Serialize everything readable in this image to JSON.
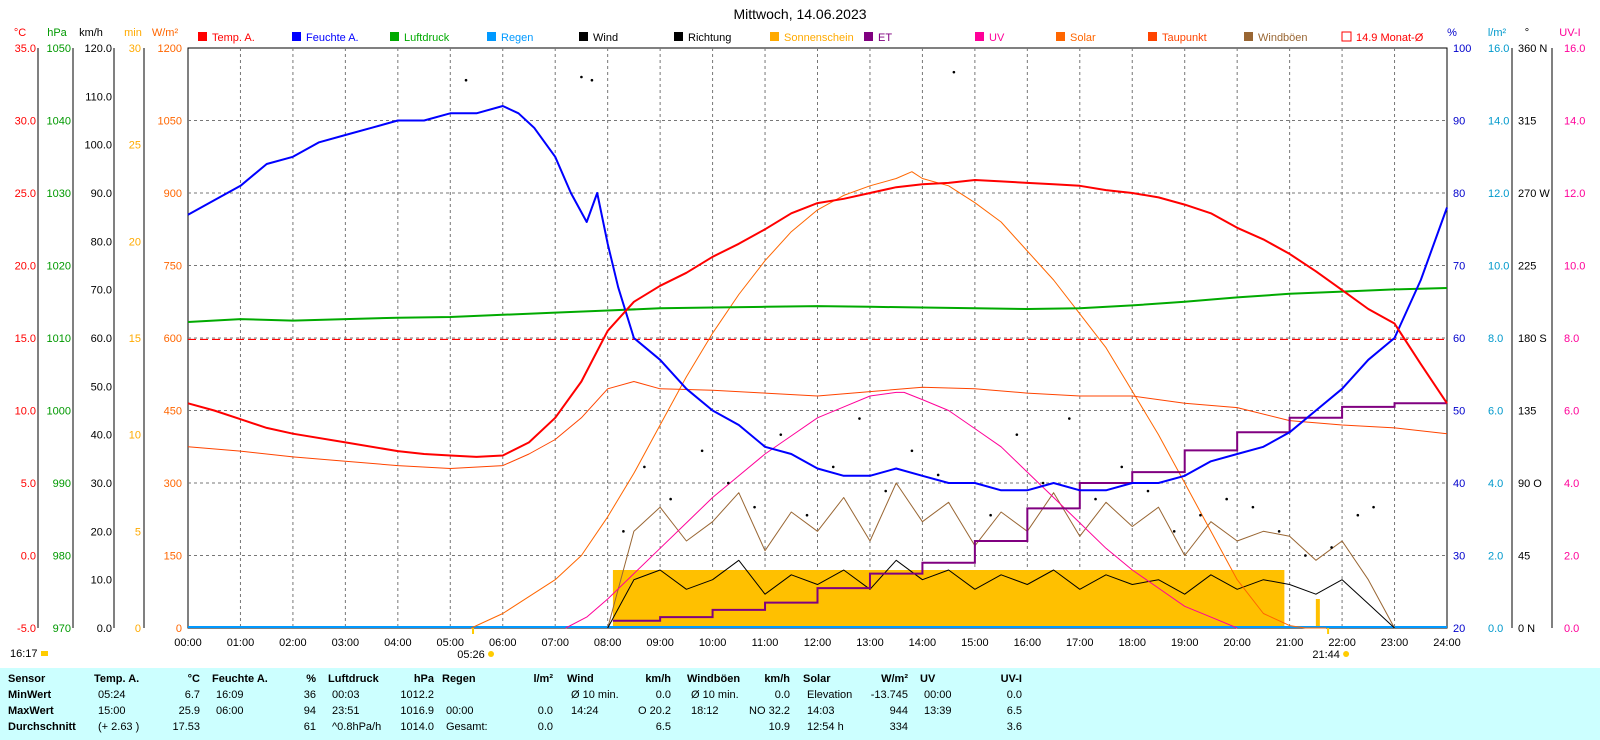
{
  "chart_data": {
    "type": "line",
    "title": "Mittwoch, 14.06.2023",
    "x_axis": {
      "range_hours": [
        0,
        24
      ],
      "tick_labels": [
        "00:00",
        "01:00",
        "02:00",
        "03:00",
        "04:00",
        "05:00",
        "06:00",
        "07:00",
        "08:00",
        "09:00",
        "10:00",
        "11:00",
        "12:00",
        "13:00",
        "14:00",
        "15:00",
        "16:00",
        "17:00",
        "18:00",
        "19:00",
        "20:00",
        "21:00",
        "22:00",
        "23:00",
        "24:00"
      ],
      "sunrise": "05:26",
      "sunset": "21:44",
      "current_time": "16:17"
    },
    "axes": [
      {
        "id": "temp",
        "unit": "°C",
        "color": "#ff0000",
        "min": -5,
        "max": 35,
        "ticks": [
          "-5.0",
          "0.0",
          "5.0",
          "10.0",
          "15.0",
          "20.0",
          "25.0",
          "30.0",
          "35.0"
        ]
      },
      {
        "id": "pressure",
        "unit": "hPa",
        "color": "#009900",
        "min": 970,
        "max": 1050,
        "ticks": [
          "970",
          "980",
          "990",
          "1000",
          "1010",
          "1020",
          "1030",
          "1040",
          "1050"
        ]
      },
      {
        "id": "wind",
        "unit": "km/h",
        "color": "#000000",
        "min": 0,
        "max": 120,
        "ticks": [
          "0.0",
          "10.0",
          "20.0",
          "30.0",
          "40.0",
          "50.0",
          "60.0",
          "70.0",
          "80.0",
          "90.0",
          "100.0",
          "110.0",
          "120.0"
        ]
      },
      {
        "id": "sunmin",
        "unit": "min",
        "color": "#ffaa00",
        "min": 0,
        "max": 30,
        "ticks": [
          "0",
          "5",
          "10",
          "15",
          "20",
          "25",
          "30"
        ]
      },
      {
        "id": "solar",
        "unit": "W/m²",
        "color": "#ff6600",
        "min": 0,
        "max": 1200,
        "ticks": [
          "0",
          "150",
          "300",
          "450",
          "600",
          "750",
          "900",
          "1050",
          "1200"
        ]
      },
      {
        "id": "humidity",
        "unit": "%",
        "color": "#0000cc",
        "min": 20,
        "max": 100,
        "ticks": [
          "20",
          "30",
          "40",
          "50",
          "60",
          "70",
          "80",
          "90",
          "100"
        ]
      },
      {
        "id": "rain",
        "unit": "l/m²",
        "color": "#0099cc",
        "min": 0,
        "max": 16,
        "ticks": [
          "0.0",
          "2.0",
          "4.0",
          "6.0",
          "8.0",
          "10.0",
          "12.0",
          "14.0",
          "16.0"
        ]
      },
      {
        "id": "direction",
        "unit": "°",
        "color": "#000000",
        "min": 0,
        "max": 360,
        "ticks": [
          "0 N",
          "45",
          "90 O",
          "135",
          "180 S",
          "225",
          "270 W",
          "315",
          "360 N"
        ]
      },
      {
        "id": "uv",
        "unit": "UV-I",
        "color": "#ff0099",
        "min": 0,
        "max": 16,
        "ticks": [
          "0.0",
          "2.0",
          "4.0",
          "6.0",
          "8.0",
          "10.0",
          "12.0",
          "14.0",
          "16.0"
        ]
      }
    ],
    "legend": [
      {
        "label": "Temp. A.",
        "color": "#ff0000"
      },
      {
        "label": "Feuchte A.",
        "color": "#0000ff"
      },
      {
        "label": "Luftdruck",
        "color": "#00aa00"
      },
      {
        "label": "Regen",
        "color": "#0099ff"
      },
      {
        "label": "Wind",
        "color": "#000000"
      },
      {
        "label": "Richtung",
        "color": "#000000"
      },
      {
        "label": "Sonnenschein",
        "color": "#ffaa00"
      },
      {
        "label": "ET",
        "color": "#800080"
      },
      {
        "label": "UV",
        "color": "#ff0099"
      },
      {
        "label": "Solar",
        "color": "#ff6600"
      },
      {
        "label": "Taupunkt",
        "color": "#ff4400"
      },
      {
        "label": "Windböen",
        "color": "#996633"
      },
      {
        "label": "14.9 Monat-Ø",
        "color": "#ff0000",
        "outline": true
      }
    ],
    "monthly_avg_temp": 14.9,
    "series": [
      {
        "name": "Temp. A.",
        "axis": "temp",
        "color": "#ff0000",
        "x": [
          0,
          0.5,
          1,
          1.5,
          2,
          3,
          4,
          4.5,
          5,
          5.5,
          6,
          6.5,
          7,
          7.5,
          8,
          8.5,
          9,
          9.5,
          10,
          10.5,
          11,
          11.5,
          12,
          12.5,
          13,
          13.5,
          14,
          14.5,
          15,
          15.5,
          16,
          16.5,
          17,
          17.5,
          18,
          18.5,
          19,
          19.5,
          20,
          20.5,
          21,
          21.5,
          22,
          22.5,
          23,
          23.5,
          24
        ],
        "y": [
          10.5,
          10.0,
          9.4,
          8.8,
          8.4,
          7.8,
          7.2,
          7.0,
          6.9,
          6.8,
          6.9,
          7.8,
          9.5,
          12.0,
          15.5,
          17.5,
          18.6,
          19.5,
          20.6,
          21.5,
          22.5,
          23.6,
          24.3,
          24.6,
          25.0,
          25.4,
          25.6,
          25.7,
          25.9,
          25.8,
          25.7,
          25.6,
          25.5,
          25.2,
          25.0,
          24.7,
          24.2,
          23.6,
          22.6,
          21.8,
          20.8,
          19.6,
          18.3,
          17.0,
          16.0,
          13.2,
          10.5
        ]
      },
      {
        "name": "Feuchte A.",
        "axis": "humidity",
        "color": "#0000ff",
        "x": [
          0,
          0.5,
          1,
          1.5,
          2,
          2.5,
          3,
          3.5,
          4,
          4.5,
          5,
          5.5,
          6,
          6.3,
          6.6,
          7,
          7.3,
          7.6,
          7.8,
          8,
          8.2,
          8.5,
          9,
          9.5,
          10,
          10.5,
          11,
          11.5,
          12,
          12.5,
          13,
          13.5,
          14,
          14.5,
          15,
          15.5,
          16,
          16.5,
          17,
          17.5,
          18,
          18.5,
          19,
          19.5,
          20,
          20.5,
          21,
          21.5,
          22,
          22.5,
          23,
          23.5,
          24
        ],
        "y": [
          77,
          79,
          81,
          84,
          85,
          87,
          88,
          89,
          90,
          90,
          91,
          91,
          92,
          91,
          89,
          85,
          80,
          76,
          80,
          73,
          67,
          60,
          57,
          53,
          50,
          48,
          45,
          44,
          42,
          41,
          41,
          42,
          41,
          40,
          40,
          39,
          39,
          40,
          39,
          39,
          40,
          40,
          41,
          43,
          44,
          45,
          47,
          50,
          53,
          57,
          60,
          68,
          78
        ]
      },
      {
        "name": "Luftdruck",
        "axis": "pressure",
        "color": "#00aa00",
        "x": [
          0,
          1,
          2,
          3,
          4,
          5,
          6,
          7,
          8,
          9,
          10,
          11,
          12,
          13,
          14,
          15,
          16,
          17,
          18,
          19,
          20,
          21,
          22,
          23,
          24
        ],
        "y": [
          1012.2,
          1012.6,
          1012.4,
          1012.6,
          1012.8,
          1012.9,
          1013.2,
          1013.5,
          1013.8,
          1014.1,
          1014.2,
          1014.3,
          1014.4,
          1014.3,
          1014.2,
          1014.1,
          1014.0,
          1014.1,
          1014.5,
          1015.0,
          1015.6,
          1016.1,
          1016.4,
          1016.7,
          1016.9
        ]
      },
      {
        "name": "Taupunkt",
        "axis": "temp",
        "color": "#ff4400",
        "x": [
          0,
          1,
          2,
          3,
          4,
          5,
          6,
          6.5,
          7,
          7.5,
          8,
          8.5,
          9,
          10,
          11,
          12,
          13,
          14,
          15,
          16,
          17,
          18,
          19,
          20,
          21,
          22,
          23,
          24
        ],
        "y": [
          7.5,
          7.2,
          6.8,
          6.5,
          6.2,
          6.0,
          6.2,
          7.0,
          8.0,
          9.5,
          11.5,
          12.0,
          11.5,
          11.4,
          11.2,
          11.0,
          11.3,
          11.6,
          11.5,
          11.2,
          11.0,
          11.0,
          10.5,
          10.2,
          9.3,
          9.0,
          8.8,
          8.4
        ]
      },
      {
        "name": "Solar",
        "axis": "solar",
        "color": "#ff6600",
        "x": [
          5.4,
          6,
          7,
          7.5,
          8,
          8.5,
          9,
          9.5,
          10,
          10.5,
          11,
          11.5,
          12,
          12.5,
          13,
          13.5,
          13.8,
          14,
          14.5,
          15,
          15.5,
          16,
          16.5,
          17,
          17.5,
          18,
          18.5,
          19,
          19.5,
          20,
          20.5,
          21,
          21.3,
          21.7
        ],
        "y": [
          0,
          30,
          100,
          150,
          230,
          320,
          420,
          520,
          610,
          690,
          760,
          820,
          865,
          895,
          915,
          930,
          944,
          930,
          915,
          880,
          840,
          780,
          720,
          650,
          580,
          490,
          400,
          300,
          200,
          100,
          30,
          5,
          0,
          0
        ]
      },
      {
        "name": "UV",
        "axis": "uv",
        "color": "#ff0099",
        "x": [
          7.2,
          7.6,
          8,
          8.5,
          9,
          9.5,
          10,
          10.5,
          11,
          11.5,
          12,
          12.5,
          13,
          13.5,
          13.65,
          14,
          14.5,
          15,
          15.5,
          16,
          16.5,
          17,
          17.5,
          18,
          18.5,
          19,
          19.5,
          20
        ],
        "y": [
          0,
          0.3,
          0.8,
          1.5,
          2.2,
          2.9,
          3.6,
          4.2,
          4.8,
          5.3,
          5.8,
          6.1,
          6.4,
          6.5,
          6.5,
          6.3,
          6.0,
          5.5,
          5.0,
          4.3,
          3.6,
          2.9,
          2.2,
          1.6,
          1.1,
          0.6,
          0.3,
          0
        ]
      },
      {
        "name": "ET",
        "axis": "rain",
        "color": "#800080",
        "x": [
          8.1,
          9,
          10,
          11,
          12,
          13,
          14,
          15,
          16,
          17,
          18,
          19,
          20,
          21,
          22,
          23,
          24
        ],
        "y": [
          0.2,
          0.3,
          0.5,
          0.7,
          1.1,
          1.5,
          1.8,
          2.4,
          3.3,
          4.0,
          4.3,
          4.9,
          5.4,
          5.8,
          6.1,
          6.2,
          6.2
        ]
      },
      {
        "name": "Wind",
        "axis": "wind",
        "color": "#000000",
        "x": [
          8,
          8.5,
          9,
          9.5,
          10,
          10.5,
          11,
          11.5,
          12,
          12.5,
          13,
          13.5,
          14,
          14.5,
          15,
          15.5,
          16,
          16.5,
          17,
          17.5,
          18,
          18.5,
          19,
          19.5,
          20,
          20.5,
          21,
          21.5,
          22,
          22.5,
          23
        ],
        "y": [
          0,
          10,
          12,
          8,
          10,
          14,
          7,
          11,
          9,
          12,
          8,
          14,
          10,
          12,
          8,
          11,
          9,
          12,
          8,
          11,
          9,
          10,
          7,
          11,
          8,
          10,
          9,
          7,
          10,
          5,
          0
        ]
      },
      {
        "name": "Windböen",
        "axis": "wind",
        "color": "#996633",
        "x": [
          8,
          8.5,
          9,
          9.5,
          10,
          10.5,
          11,
          11.5,
          12,
          12.5,
          13,
          13.5,
          14,
          14.5,
          15,
          15.5,
          16,
          16.5,
          17,
          17.5,
          18,
          18.5,
          19,
          19.5,
          20,
          20.5,
          21,
          21.5,
          22,
          22.5,
          23
        ],
        "y": [
          0,
          20,
          25,
          18,
          22,
          28,
          16,
          24,
          20,
          27,
          18,
          30,
          22,
          26,
          17,
          24,
          20,
          28,
          19,
          26,
          21,
          25,
          15,
          22,
          18,
          20,
          19,
          14,
          18,
          10,
          0
        ]
      },
      {
        "name": "Richtung",
        "axis": "direction",
        "color": "#000000",
        "x": [
          5.3,
          7.5,
          7.7,
          8.3,
          8.7,
          9.2,
          9.8,
          10.3,
          10.8,
          11.3,
          11.8,
          12.3,
          12.8,
          13.3,
          13.8,
          14.3,
          14.6,
          15.3,
          15.8,
          16.3,
          16.8,
          17.3,
          17.8,
          18.3,
          18.8,
          19.3,
          19.8,
          20.3,
          20.8,
          21.3,
          21.8,
          22.3,
          22.6
        ],
        "y": [
          340,
          342,
          340,
          60,
          100,
          80,
          110,
          90,
          75,
          120,
          70,
          100,
          130,
          85,
          110,
          95,
          345,
          70,
          120,
          90,
          130,
          80,
          100,
          85,
          60,
          70,
          80,
          75,
          60,
          45,
          50,
          70,
          75
        ]
      }
    ],
    "sunshine": {
      "axis": "sunmin",
      "color": "#ffc000",
      "x_start": 8.1,
      "x_end": 20.9,
      "level": 3,
      "spike_x": 21.5,
      "spike_level": 1.5
    }
  },
  "stats": {
    "headers": [
      {
        "name": "Sensor",
        "unit": ""
      },
      {
        "name": "Temp. A.",
        "unit": "°C"
      },
      {
        "name": "Feuchte A.",
        "unit": "%"
      },
      {
        "name": "Luftdruck",
        "unit": "hPa"
      },
      {
        "name": "Regen",
        "unit": "l/m²"
      },
      {
        "name": "Wind",
        "unit": "km/h"
      },
      {
        "name": "Windböen",
        "unit": "km/h"
      },
      {
        "name": "Solar",
        "unit": "W/m²"
      },
      {
        "name": "UV",
        "unit": "UV-I"
      }
    ],
    "row_labels": [
      "MinWert",
      "MaxWert",
      "Durchschnitt"
    ],
    "cells": [
      [
        [
          "05:24",
          "6.7"
        ],
        [
          "16:09",
          "36"
        ],
        [
          "00:03",
          "1012.2"
        ],
        [
          "",
          ""
        ],
        [
          "Ø 10 min.",
          "0.0"
        ],
        [
          "Ø 10 min.",
          "0.0"
        ],
        [
          "Elevation",
          "-13.745"
        ],
        [
          "00:00",
          "0.0"
        ]
      ],
      [
        [
          "15:00",
          "25.9"
        ],
        [
          "06:00",
          "94"
        ],
        [
          "23:51",
          "1016.9"
        ],
        [
          "00:00",
          "0.0"
        ],
        [
          "14:24",
          "O 20.2"
        ],
        [
          "18:12",
          "NO 32.2"
        ],
        [
          "14:03",
          "944"
        ],
        [
          "13:39",
          "6.5"
        ]
      ],
      [
        [
          "(+ 2.63 )",
          "17.53"
        ],
        [
          "",
          "61"
        ],
        [
          "^0.8hPa/h",
          "1014.0"
        ],
        [
          "Gesamt:",
          "0.0"
        ],
        [
          "",
          "6.5"
        ],
        [
          "",
          "10.9"
        ],
        [
          "12:54 h",
          "334"
        ],
        [
          "",
          "3.6"
        ]
      ]
    ]
  }
}
